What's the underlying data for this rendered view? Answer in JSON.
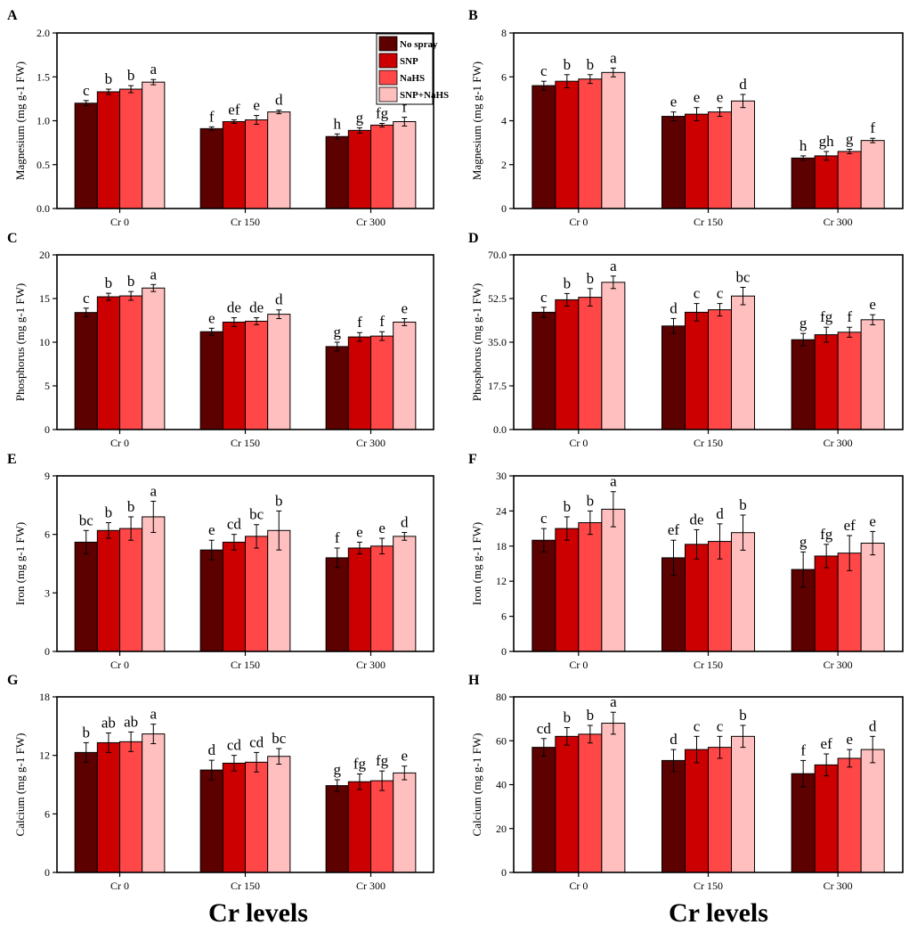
{
  "figure": {
    "xlabel_left": "Cr levels",
    "xlabel_right": "Cr levels",
    "colors": [
      "#5c0000",
      "#cc0000",
      "#ff4747",
      "#ffbfbf"
    ]
  },
  "chart_data": [
    {
      "panel": "A",
      "type": "bar",
      "ylabel": "Magnesium (mg g-1 FW)",
      "ylim": [
        0,
        2.0
      ],
      "yticks": [
        "0.0",
        "0.5",
        "1.0",
        "1.5",
        "2.0"
      ],
      "categories": [
        "Cr 0",
        "Cr 150",
        "Cr 300"
      ],
      "series": [
        {
          "name": "No spray",
          "values": [
            1.2,
            0.91,
            0.82
          ],
          "errors": [
            0.03,
            0.02,
            0.03
          ],
          "letters": [
            "c",
            "f",
            "h"
          ]
        },
        {
          "name": "SNP",
          "values": [
            1.33,
            0.99,
            0.89
          ],
          "errors": [
            0.03,
            0.02,
            0.03
          ],
          "letters": [
            "b",
            "ef",
            "g"
          ]
        },
        {
          "name": "NaHS",
          "values": [
            1.36,
            1.01,
            0.95
          ],
          "errors": [
            0.04,
            0.05,
            0.02
          ],
          "letters": [
            "b",
            "e",
            "fg"
          ]
        },
        {
          "name": "SNP+NaHS",
          "values": [
            1.44,
            1.1,
            0.99
          ],
          "errors": [
            0.03,
            0.02,
            0.05
          ],
          "letters": [
            "a",
            "d",
            "f"
          ]
        }
      ]
    },
    {
      "panel": "B",
      "type": "bar",
      "ylabel": "Magnesium (mg g-1 FW)",
      "ylim": [
        0,
        8
      ],
      "yticks": [
        "0",
        "2",
        "4",
        "6",
        "8"
      ],
      "categories": [
        "Cr 0",
        "Cr 150",
        "Cr 300"
      ],
      "series": [
        {
          "name": "No spray",
          "values": [
            5.6,
            4.2,
            2.3
          ],
          "errors": [
            0.2,
            0.2,
            0.1
          ],
          "letters": [
            "c",
            "e",
            "h"
          ]
        },
        {
          "name": "SNP",
          "values": [
            5.8,
            4.3,
            2.4
          ],
          "errors": [
            0.3,
            0.3,
            0.2
          ],
          "letters": [
            "b",
            "e",
            "gh"
          ]
        },
        {
          "name": "NaHS",
          "values": [
            5.9,
            4.4,
            2.6
          ],
          "errors": [
            0.2,
            0.2,
            0.1
          ],
          "letters": [
            "b",
            "e",
            "g"
          ]
        },
        {
          "name": "SNP+NaHS",
          "values": [
            6.2,
            4.9,
            3.1
          ],
          "errors": [
            0.2,
            0.3,
            0.1
          ],
          "letters": [
            "a",
            "d",
            "f"
          ]
        }
      ]
    },
    {
      "panel": "C",
      "type": "bar",
      "ylabel": "Phosphorus (mg g-1 FW)",
      "ylim": [
        0,
        20
      ],
      "yticks": [
        "0",
        "5",
        "10",
        "15",
        "20"
      ],
      "categories": [
        "Cr 0",
        "Cr 150",
        "Cr 300"
      ],
      "series": [
        {
          "name": "No spray",
          "values": [
            13.4,
            11.2,
            9.5
          ],
          "errors": [
            0.5,
            0.4,
            0.5
          ],
          "letters": [
            "c",
            "e",
            "g"
          ]
        },
        {
          "name": "SNP",
          "values": [
            15.2,
            12.3,
            10.6
          ],
          "errors": [
            0.4,
            0.5,
            0.5
          ],
          "letters": [
            "b",
            "de",
            "f"
          ]
        },
        {
          "name": "NaHS",
          "values": [
            15.3,
            12.4,
            10.7
          ],
          "errors": [
            0.5,
            0.4,
            0.5
          ],
          "letters": [
            "b",
            "de",
            "f"
          ]
        },
        {
          "name": "SNP+NaHS",
          "values": [
            16.2,
            13.2,
            12.3
          ],
          "errors": [
            0.4,
            0.5,
            0.4
          ],
          "letters": [
            "a",
            "d",
            "e"
          ]
        }
      ]
    },
    {
      "panel": "D",
      "type": "bar",
      "ylabel": "Phosphorus (mg g-1 FW)",
      "ylim": [
        0,
        70
      ],
      "yticks": [
        "0.0",
        "17.5",
        "35.0",
        "52.5",
        "70.0"
      ],
      "categories": [
        "Cr 0",
        "Cr 150",
        "Cr 300"
      ],
      "series": [
        {
          "name": "No spray",
          "values": [
            47,
            41.5,
            36
          ],
          "errors": [
            2,
            3,
            2.5
          ],
          "letters": [
            "c",
            "d",
            "g"
          ]
        },
        {
          "name": "SNP",
          "values": [
            52,
            47,
            38
          ],
          "errors": [
            2.5,
            3.5,
            3
          ],
          "letters": [
            "b",
            "c",
            "fg"
          ]
        },
        {
          "name": "NaHS",
          "values": [
            53,
            48,
            39
          ],
          "errors": [
            3.5,
            2.5,
            2
          ],
          "letters": [
            "b",
            "c",
            "f"
          ]
        },
        {
          "name": "SNP+NaHS",
          "values": [
            59,
            53.5,
            44
          ],
          "errors": [
            2.5,
            3.5,
            2
          ],
          "letters": [
            "a",
            "bc",
            "e"
          ]
        }
      ]
    },
    {
      "panel": "E",
      "type": "bar",
      "ylabel": "Iron (mg g-1 FW)",
      "ylim": [
        0,
        9
      ],
      "yticks": [
        "0",
        "3",
        "6",
        "9"
      ],
      "categories": [
        "Cr 0",
        "Cr 150",
        "Cr 300"
      ],
      "series": [
        {
          "name": "No spray",
          "values": [
            5.6,
            5.2,
            4.8
          ],
          "errors": [
            0.6,
            0.5,
            0.5
          ],
          "letters": [
            "bc",
            "e",
            "f"
          ]
        },
        {
          "name": "SNP",
          "values": [
            6.2,
            5.6,
            5.3
          ],
          "errors": [
            0.4,
            0.4,
            0.3
          ],
          "letters": [
            "b",
            "cd",
            "e"
          ]
        },
        {
          "name": "NaHS",
          "values": [
            6.3,
            5.9,
            5.4
          ],
          "errors": [
            0.6,
            0.6,
            0.4
          ],
          "letters": [
            "b",
            "bc",
            "e"
          ]
        },
        {
          "name": "SNP+NaHS",
          "values": [
            6.9,
            6.2,
            5.9
          ],
          "errors": [
            0.8,
            1.0,
            0.2
          ],
          "letters": [
            "a",
            "b",
            "d"
          ]
        }
      ]
    },
    {
      "panel": "F",
      "type": "bar",
      "ylabel": "Iron (mg g-1 FW)",
      "ylim": [
        0,
        30
      ],
      "yticks": [
        "0",
        "6",
        "12",
        "18",
        "24",
        "30"
      ],
      "categories": [
        "Cr 0",
        "Cr 150",
        "Cr 300"
      ],
      "series": [
        {
          "name": "No spray",
          "values": [
            19,
            16,
            14
          ],
          "errors": [
            2,
            3,
            3
          ],
          "letters": [
            "c",
            "ef",
            "g"
          ]
        },
        {
          "name": "SNP",
          "values": [
            21,
            18.3,
            16.3
          ],
          "errors": [
            2,
            2.5,
            2
          ],
          "letters": [
            "b",
            "de",
            "fg"
          ]
        },
        {
          "name": "NaHS",
          "values": [
            22,
            18.8,
            16.8
          ],
          "errors": [
            2,
            3,
            3
          ],
          "letters": [
            "b",
            "d",
            "ef"
          ]
        },
        {
          "name": "SNP+NaHS",
          "values": [
            24.3,
            20.3,
            18.5
          ],
          "errors": [
            3,
            3,
            2
          ],
          "letters": [
            "a",
            "b",
            "e"
          ]
        }
      ]
    },
    {
      "panel": "G",
      "type": "bar",
      "ylabel": "Calcium (mg g-1 FW)",
      "ylim": [
        0,
        18
      ],
      "yticks": [
        "0",
        "6",
        "12",
        "18"
      ],
      "categories": [
        "Cr 0",
        "Cr 150",
        "Cr 300"
      ],
      "series": [
        {
          "name": "No spray",
          "values": [
            12.3,
            10.5,
            8.9
          ],
          "errors": [
            1.0,
            1.0,
            0.6
          ],
          "letters": [
            "b",
            "d",
            "g"
          ]
        },
        {
          "name": "SNP",
          "values": [
            13.3,
            11.2,
            9.3
          ],
          "errors": [
            1.0,
            0.8,
            0.8
          ],
          "letters": [
            "ab",
            "cd",
            "fg"
          ]
        },
        {
          "name": "NaHS",
          "values": [
            13.4,
            11.3,
            9.4
          ],
          "errors": [
            1.0,
            1.0,
            1.0
          ],
          "letters": [
            "ab",
            "cd",
            "fg"
          ]
        },
        {
          "name": "SNP+NaHS",
          "values": [
            14.2,
            11.9,
            10.2
          ],
          "errors": [
            1.0,
            0.8,
            0.7
          ],
          "letters": [
            "a",
            "bc",
            "e"
          ]
        }
      ]
    },
    {
      "panel": "H",
      "type": "bar",
      "ylabel": "Calcium (mg g-1 FW)",
      "ylim": [
        0,
        80
      ],
      "yticks": [
        "0",
        "20",
        "40",
        "60",
        "80"
      ],
      "categories": [
        "Cr 0",
        "Cr 150",
        "Cr 300"
      ],
      "series": [
        {
          "name": "No spray",
          "values": [
            57,
            51,
            45
          ],
          "errors": [
            4,
            5,
            6
          ],
          "letters": [
            "cd",
            "d",
            "f"
          ]
        },
        {
          "name": "SNP",
          "values": [
            62,
            56,
            49
          ],
          "errors": [
            4,
            6,
            5
          ],
          "letters": [
            "b",
            "c",
            "ef"
          ]
        },
        {
          "name": "NaHS",
          "values": [
            63,
            57,
            52
          ],
          "errors": [
            4,
            5,
            4
          ],
          "letters": [
            "b",
            "c",
            "e"
          ]
        },
        {
          "name": "SNP+NaHS",
          "values": [
            68,
            62,
            56
          ],
          "errors": [
            5,
            5,
            6
          ],
          "letters": [
            "a",
            "b",
            "d"
          ]
        }
      ]
    }
  ]
}
